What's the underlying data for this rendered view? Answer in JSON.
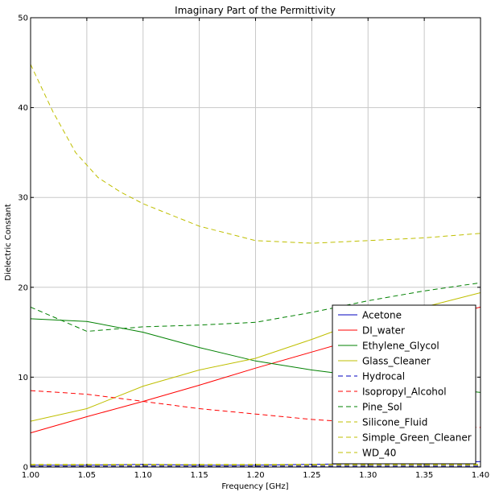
{
  "chart_data": {
    "type": "line",
    "title": "Imaginary Part of the Permittivity",
    "xlabel": "Frequency [GHz]",
    "ylabel": "Dielectric Constant",
    "xlim": [
      1.0,
      1.4
    ],
    "ylim": [
      0,
      50
    ],
    "xticks": [
      "1.00",
      "1.05",
      "1.10",
      "1.15",
      "1.20",
      "1.25",
      "1.30",
      "1.35",
      "1.40"
    ],
    "yticks": [
      "0",
      "10",
      "20",
      "30",
      "40",
      "50"
    ],
    "grid": true,
    "legend_position": "lower-right",
    "series": [
      {
        "name": "Acetone",
        "color": "#0000bf",
        "dash": "solid",
        "x": [
          1.0,
          1.05,
          1.1,
          1.15,
          1.2,
          1.25,
          1.3,
          1.35,
          1.4
        ],
        "y": [
          0.2,
          0.2,
          0.3,
          0.2,
          0.2,
          0.3,
          0.4,
          0.4,
          0.6
        ]
      },
      {
        "name": "DI_water",
        "color": "#ff0000",
        "dash": "solid",
        "x": [
          1.0,
          1.05,
          1.1,
          1.15,
          1.2,
          1.25,
          1.3,
          1.35,
          1.4
        ],
        "y": [
          3.8,
          5.6,
          7.3,
          9.1,
          11.0,
          12.8,
          14.6,
          16.3,
          17.8
        ]
      },
      {
        "name": "Ethylene_Glycol",
        "color": "#008000",
        "dash": "solid",
        "x": [
          1.0,
          1.05,
          1.1,
          1.15,
          1.2,
          1.25,
          1.3,
          1.35,
          1.4
        ],
        "y": [
          16.5,
          16.2,
          15.0,
          13.3,
          11.8,
          10.8,
          10.0,
          9.0,
          8.3
        ]
      },
      {
        "name": "Glass_Cleaner",
        "color": "#bfbf00",
        "dash": "solid",
        "x": [
          1.0,
          1.05,
          1.1,
          1.15,
          1.2,
          1.25,
          1.3,
          1.35,
          1.4
        ],
        "y": [
          5.1,
          6.5,
          9.0,
          10.8,
          12.1,
          14.2,
          16.5,
          17.8,
          19.4
        ]
      },
      {
        "name": "Hydrocal",
        "color": "#0000bf",
        "dash": "dashed",
        "x": [
          1.0,
          1.05,
          1.1,
          1.15,
          1.2,
          1.25,
          1.3,
          1.35,
          1.4
        ],
        "y": [
          0.1,
          0.1,
          0.1,
          0.1,
          0.1,
          0.1,
          0.1,
          0.1,
          0.1
        ]
      },
      {
        "name": "Isopropyl_Alcohol",
        "color": "#ff0000",
        "dash": "dashed",
        "x": [
          1.0,
          1.05,
          1.1,
          1.15,
          1.2,
          1.25,
          1.3,
          1.35,
          1.4
        ],
        "y": [
          8.5,
          8.1,
          7.3,
          6.5,
          5.9,
          5.3,
          4.9,
          4.6,
          4.4
        ]
      },
      {
        "name": "Pine_Sol",
        "color": "#008000",
        "dash": "dashed",
        "x": [
          1.0,
          1.05,
          1.1,
          1.15,
          1.2,
          1.25,
          1.3,
          1.35,
          1.4
        ],
        "y": [
          17.8,
          15.1,
          15.6,
          15.8,
          16.1,
          17.2,
          18.5,
          19.6,
          20.5
        ]
      },
      {
        "name": "Silicone_Fluid",
        "color": "#bfbf00",
        "dash": "dashed",
        "x": [
          1.0,
          1.05,
          1.1,
          1.15,
          1.2,
          1.25,
          1.3,
          1.35,
          1.4
        ],
        "y": [
          0.2,
          0.2,
          0.2,
          0.2,
          0.2,
          0.2,
          0.2,
          0.2,
          0.2
        ]
      },
      {
        "name": "Simple_Green_Cleaner",
        "color": "#bfbf00",
        "dash": "dashed",
        "x": [
          1.0,
          1.05,
          1.1,
          1.15,
          1.2,
          1.25,
          1.3,
          1.35,
          1.4
        ],
        "y": [
          0.3,
          0.3,
          0.3,
          0.3,
          0.3,
          0.3,
          0.3,
          0.3,
          0.3
        ]
      },
      {
        "name": "WD_40",
        "color": "#bfbf00",
        "dash": "dashed",
        "x": [
          1.0,
          1.02,
          1.04,
          1.06,
          1.08,
          1.1,
          1.12,
          1.15,
          1.2,
          1.25,
          1.3,
          1.35,
          1.4
        ],
        "y": [
          44.8,
          39.5,
          35.0,
          32.2,
          30.6,
          29.3,
          28.3,
          26.8,
          25.2,
          24.9,
          25.2,
          25.5,
          26.0
        ]
      }
    ]
  }
}
